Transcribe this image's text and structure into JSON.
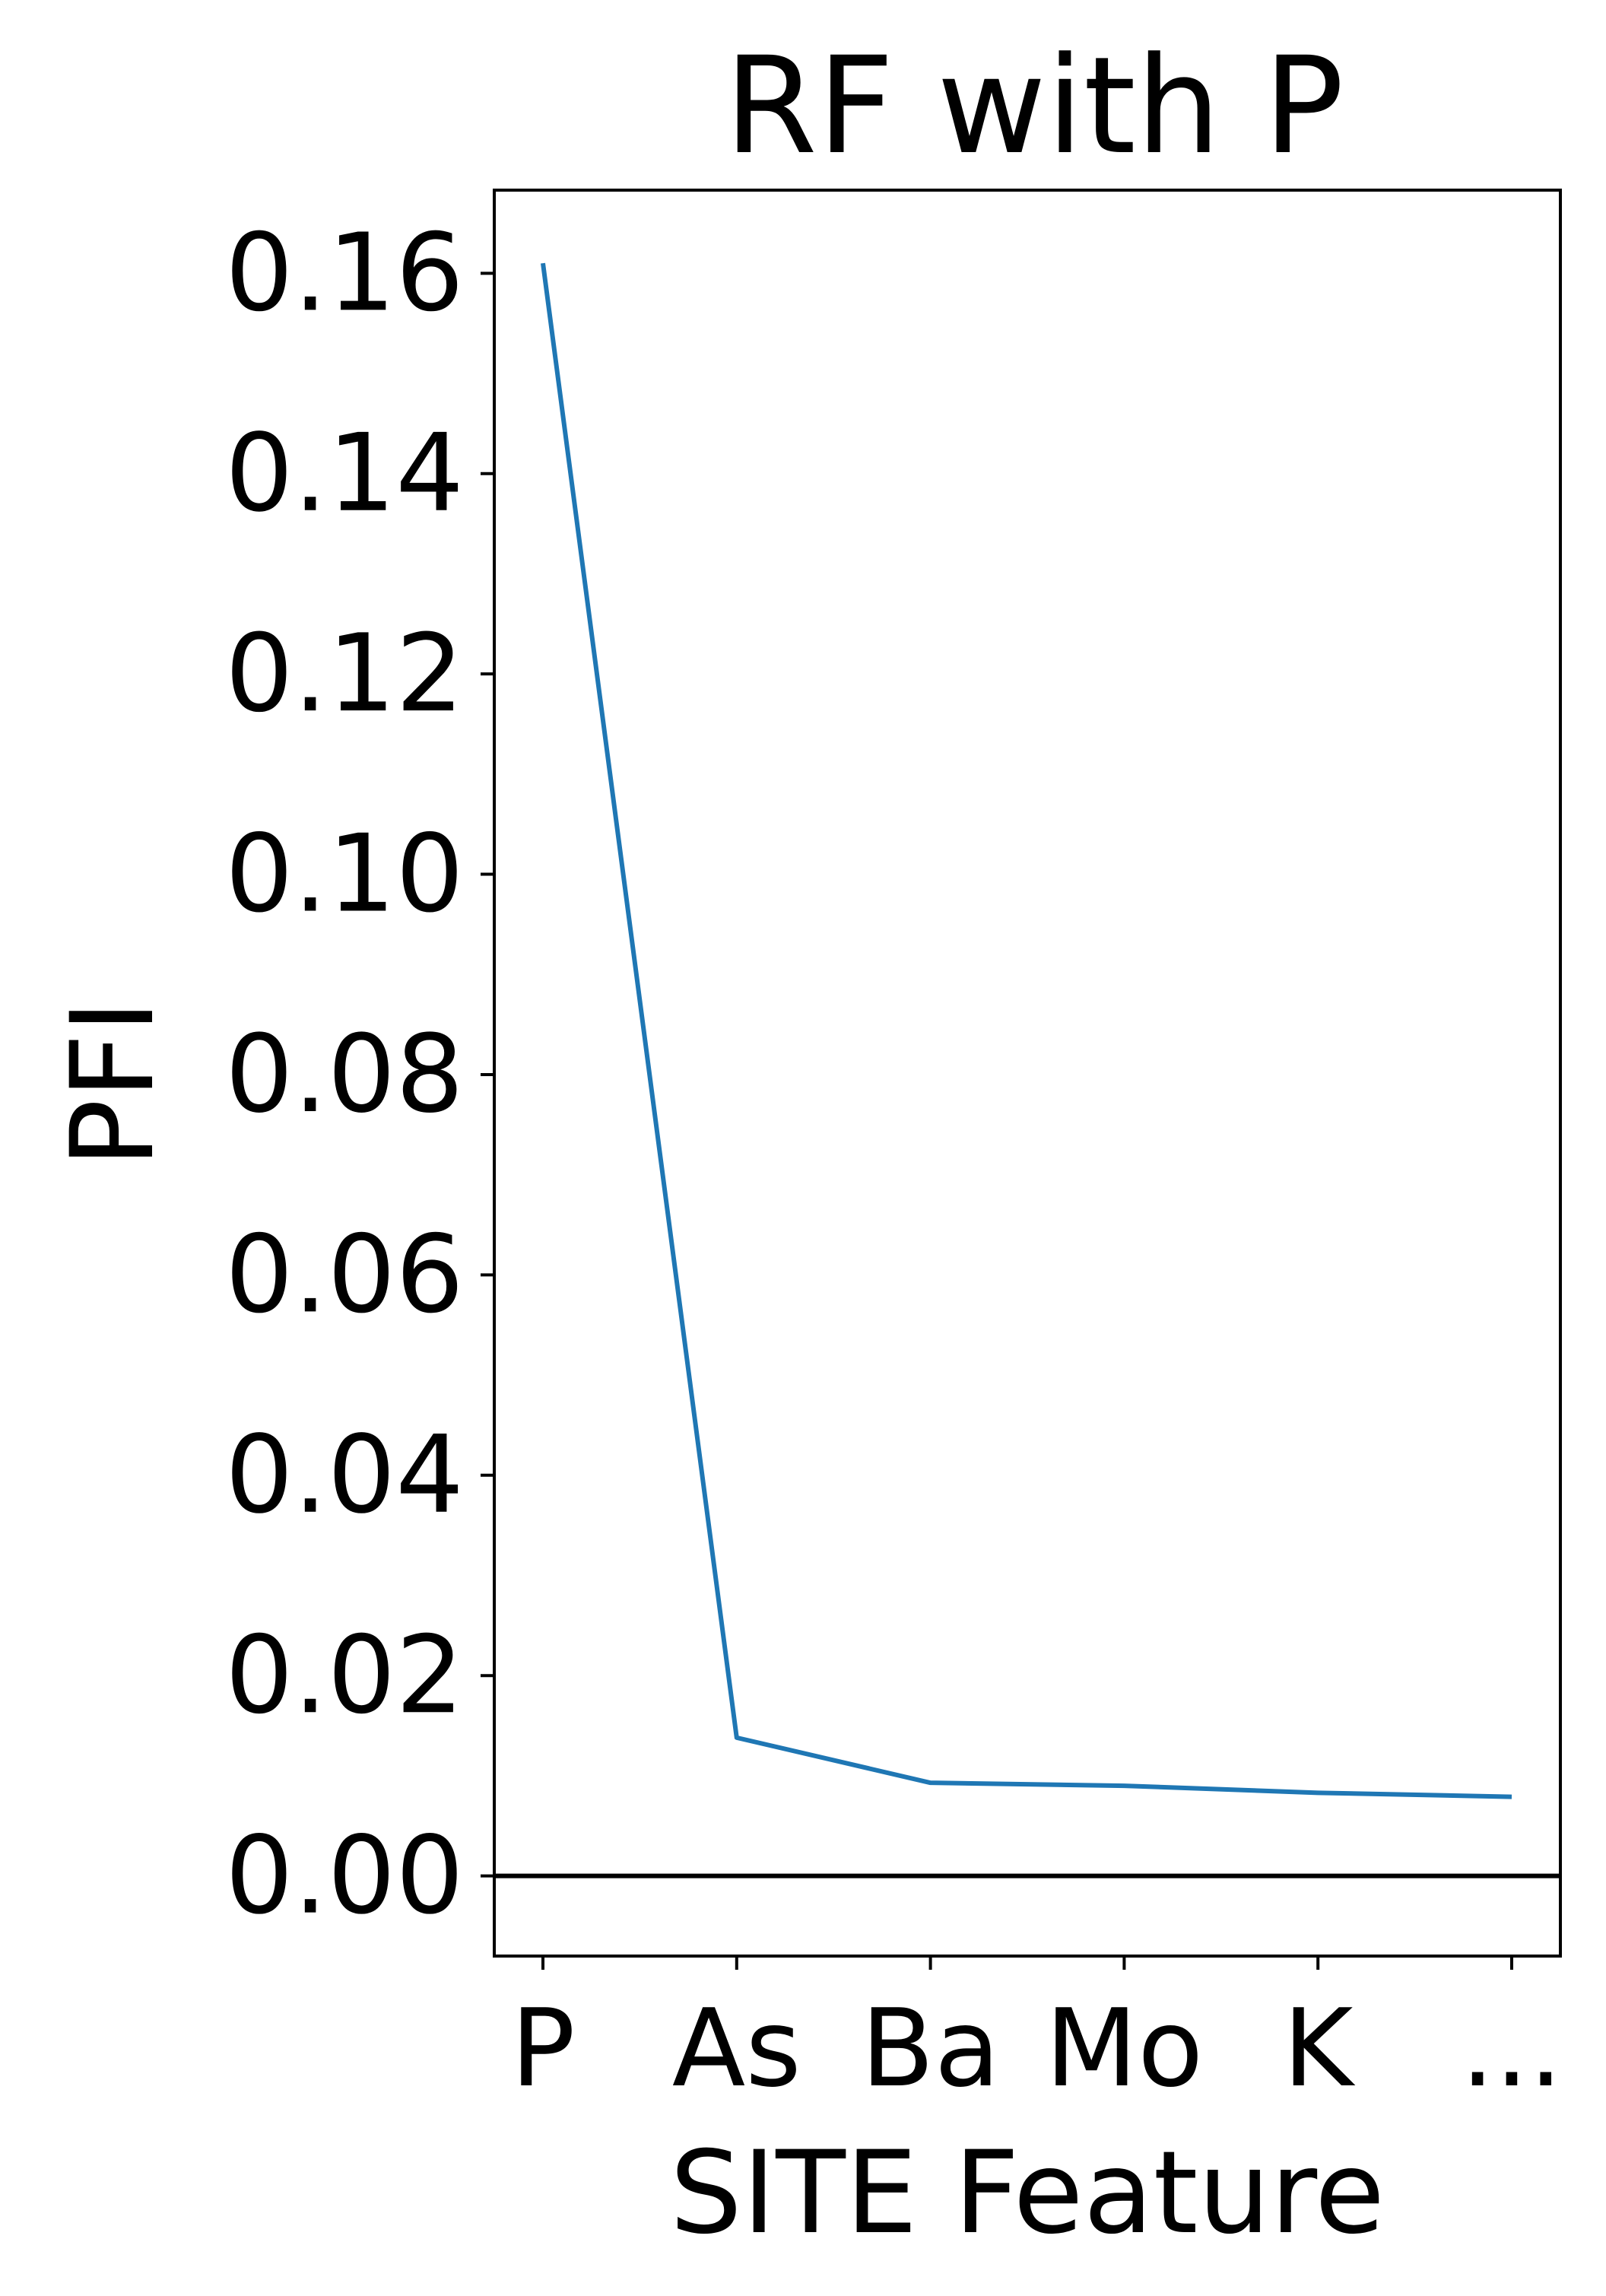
{
  "chart_data": {
    "type": "line",
    "title": "RF with P",
    "xlabel": "SITE Feature",
    "ylabel": "PFI",
    "categories": [
      "P",
      "As",
      "Ba",
      "Mo",
      "K",
      "..."
    ],
    "series": [
      {
        "values": [
          0.161,
          0.0138,
          0.0093,
          0.009,
          0.0083,
          0.0079
        ]
      }
    ],
    "ylim": [
      -0.008,
      0.1683
    ],
    "yticks": [
      "0.00",
      "0.02",
      "0.04",
      "0.06",
      "0.08",
      "0.10",
      "0.12",
      "0.14",
      "0.16"
    ],
    "reference_line_y": 0,
    "grid": false,
    "colors": {
      "series": "#1f77b4",
      "reference_line": "#000000",
      "frame": "#000000"
    }
  }
}
